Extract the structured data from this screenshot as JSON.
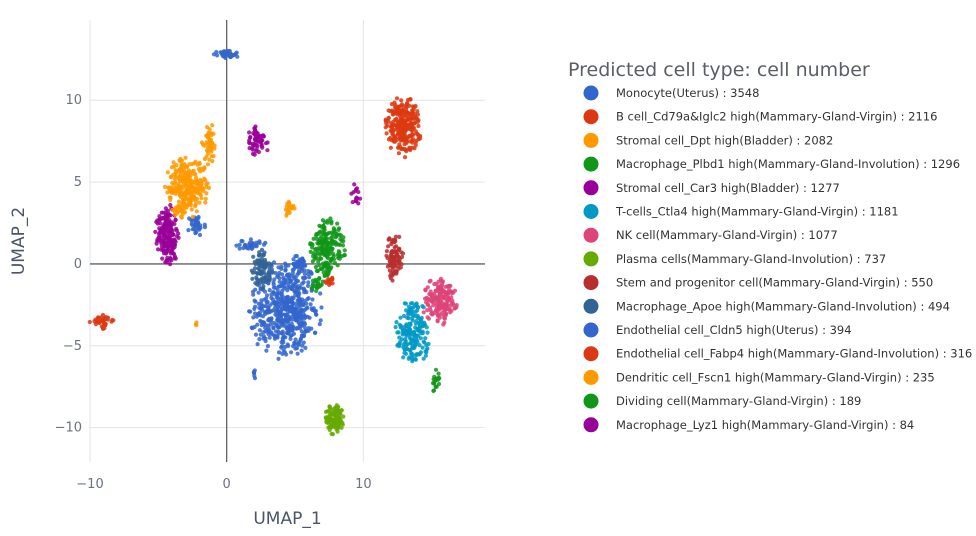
{
  "chart_data": {
    "type": "scatter",
    "title": "",
    "xlabel": "UMAP_1",
    "ylabel": "UMAP_2",
    "xlim": [
      -10,
      18.9
    ],
    "ylim": [
      -12.1,
      14.9
    ],
    "x_ticks": [
      -10,
      0,
      10
    ],
    "x_tick_labels": [
      "−10",
      "0",
      "10"
    ],
    "y_ticks": [
      -10,
      -5,
      0,
      5,
      10
    ],
    "y_tick_labels": [
      "−10",
      "−5",
      "0",
      "5",
      "10"
    ],
    "grid": true,
    "legend_title": "Predicted cell type: cell number",
    "legend_position": "right",
    "series": [
      {
        "name": "Monocyte(Uterus) : 3548",
        "color": "#3366CC",
        "clusters": [
          {
            "cx": 4.3,
            "cy": -2.8,
            "rx": 2.6,
            "ry": 3.0,
            "n": 520
          },
          {
            "cx": 0.0,
            "cy": 12.8,
            "rx": 0.9,
            "ry": 0.25,
            "n": 50
          },
          {
            "cx": -2.2,
            "cy": 2.4,
            "rx": 0.7,
            "ry": 0.7,
            "n": 40
          },
          {
            "cx": 1.7,
            "cy": 1.2,
            "rx": 1.2,
            "ry": 0.4,
            "n": 30
          },
          {
            "cx": 2.0,
            "cy": -6.7,
            "rx": 0.2,
            "ry": 0.3,
            "n": 6
          }
        ]
      },
      {
        "name": "B cell_Cd79a&Iglc2 high(Mammary-Gland-Virgin) : 2116",
        "color": "#DC3912",
        "clusters": [
          {
            "cx": 12.9,
            "cy": 8.4,
            "rx": 1.3,
            "ry": 1.8,
            "n": 260
          },
          {
            "cx": -9.1,
            "cy": -3.5,
            "rx": 0.9,
            "ry": 0.5,
            "n": 40
          }
        ]
      },
      {
        "name": "Stromal cell_Dpt high(Bladder) : 2082",
        "color": "#FF9900",
        "clusters": [
          {
            "cx": -2.9,
            "cy": 4.7,
            "rx": 1.6,
            "ry": 1.8,
            "n": 260
          },
          {
            "cx": -1.3,
            "cy": 7.3,
            "rx": 0.5,
            "ry": 1.3,
            "n": 50
          },
          {
            "cx": 4.6,
            "cy": 3.4,
            "rx": 0.4,
            "ry": 0.6,
            "n": 25
          },
          {
            "cx": -2.2,
            "cy": -3.6,
            "rx": 0.1,
            "ry": 0.2,
            "n": 3
          }
        ]
      },
      {
        "name": "Macrophage_Plbd1 high(Mammary-Gland-Involution) : 1296",
        "color": "#109618",
        "clusters": [
          {
            "cx": 7.3,
            "cy": 0.8,
            "rx": 1.3,
            "ry": 2.0,
            "n": 200
          },
          {
            "cx": 15.3,
            "cy": -7.3,
            "rx": 0.3,
            "ry": 0.8,
            "n": 20
          }
        ]
      },
      {
        "name": "Stromal cell_Car3 high(Bladder) : 1277",
        "color": "#990099",
        "clusters": [
          {
            "cx": -4.3,
            "cy": 1.8,
            "rx": 0.9,
            "ry": 1.8,
            "n": 180
          },
          {
            "cx": 2.3,
            "cy": 7.5,
            "rx": 0.8,
            "ry": 1.0,
            "n": 60
          },
          {
            "cx": 9.5,
            "cy": 4.2,
            "rx": 0.4,
            "ry": 0.8,
            "n": 15
          }
        ]
      },
      {
        "name": "T-cells_Ctla4 high(Mammary-Gland-Virgin) : 1181",
        "color": "#0099C6",
        "clusters": [
          {
            "cx": 13.6,
            "cy": -4.2,
            "rx": 1.3,
            "ry": 2.0,
            "n": 190
          }
        ]
      },
      {
        "name": "NK cell(Mammary-Gland-Virgin) : 1077",
        "color": "#DD4477",
        "clusters": [
          {
            "cx": 15.6,
            "cy": -2.3,
            "rx": 1.3,
            "ry": 1.4,
            "n": 170
          }
        ]
      },
      {
        "name": "Plasma cells(Mammary-Gland-Involution) : 737",
        "color": "#66AA00",
        "clusters": [
          {
            "cx": 7.9,
            "cy": -9.5,
            "rx": 0.7,
            "ry": 0.9,
            "n": 120
          }
        ]
      },
      {
        "name": "Stem and progenitor cell(Mammary-Gland-Virgin) : 550",
        "color": "#B82E2E",
        "clusters": [
          {
            "cx": 12.3,
            "cy": 0.4,
            "rx": 0.6,
            "ry": 1.5,
            "n": 90
          }
        ]
      },
      {
        "name": "Macrophage_Apoe high(Mammary-Gland-Involution) : 494",
        "color": "#316395",
        "clusters": [
          {
            "cx": 2.6,
            "cy": -0.3,
            "rx": 0.8,
            "ry": 1.2,
            "n": 80
          }
        ]
      },
      {
        "name": "Endothelial cell_Cldn5 high(Uterus) : 394",
        "color": "#3366CC",
        "clusters": [
          {
            "cx": 5.3,
            "cy": 0.0,
            "rx": 0.6,
            "ry": 0.6,
            "n": 40
          }
        ]
      },
      {
        "name": "Endothelial cell_Fabp4 high(Mammary-Gland-Involution) : 316",
        "color": "#DC3912",
        "clusters": [
          {
            "cx": 7.5,
            "cy": -1.0,
            "rx": 0.3,
            "ry": 0.3,
            "n": 15
          }
        ]
      },
      {
        "name": "Dendritic cell_Fscn1 high(Mammary-Gland-Virgin) : 235",
        "color": "#FF9900",
        "clusters": [
          {
            "cx": -3.5,
            "cy": 3.2,
            "rx": 0.5,
            "ry": 0.5,
            "n": 20
          }
        ]
      },
      {
        "name": "Dividing cell(Mammary-Gland-Virgin) : 189",
        "color": "#109618",
        "clusters": [
          {
            "cx": 6.6,
            "cy": -1.3,
            "rx": 0.4,
            "ry": 0.4,
            "n": 20
          }
        ]
      },
      {
        "name": "Macrophage_Lyz1 high(Mammary-Gland-Virgin) : 84",
        "color": "#990099",
        "clusters": [
          {
            "cx": -3.9,
            "cy": 0.5,
            "rx": 0.4,
            "ry": 0.4,
            "n": 10
          }
        ]
      }
    ]
  }
}
